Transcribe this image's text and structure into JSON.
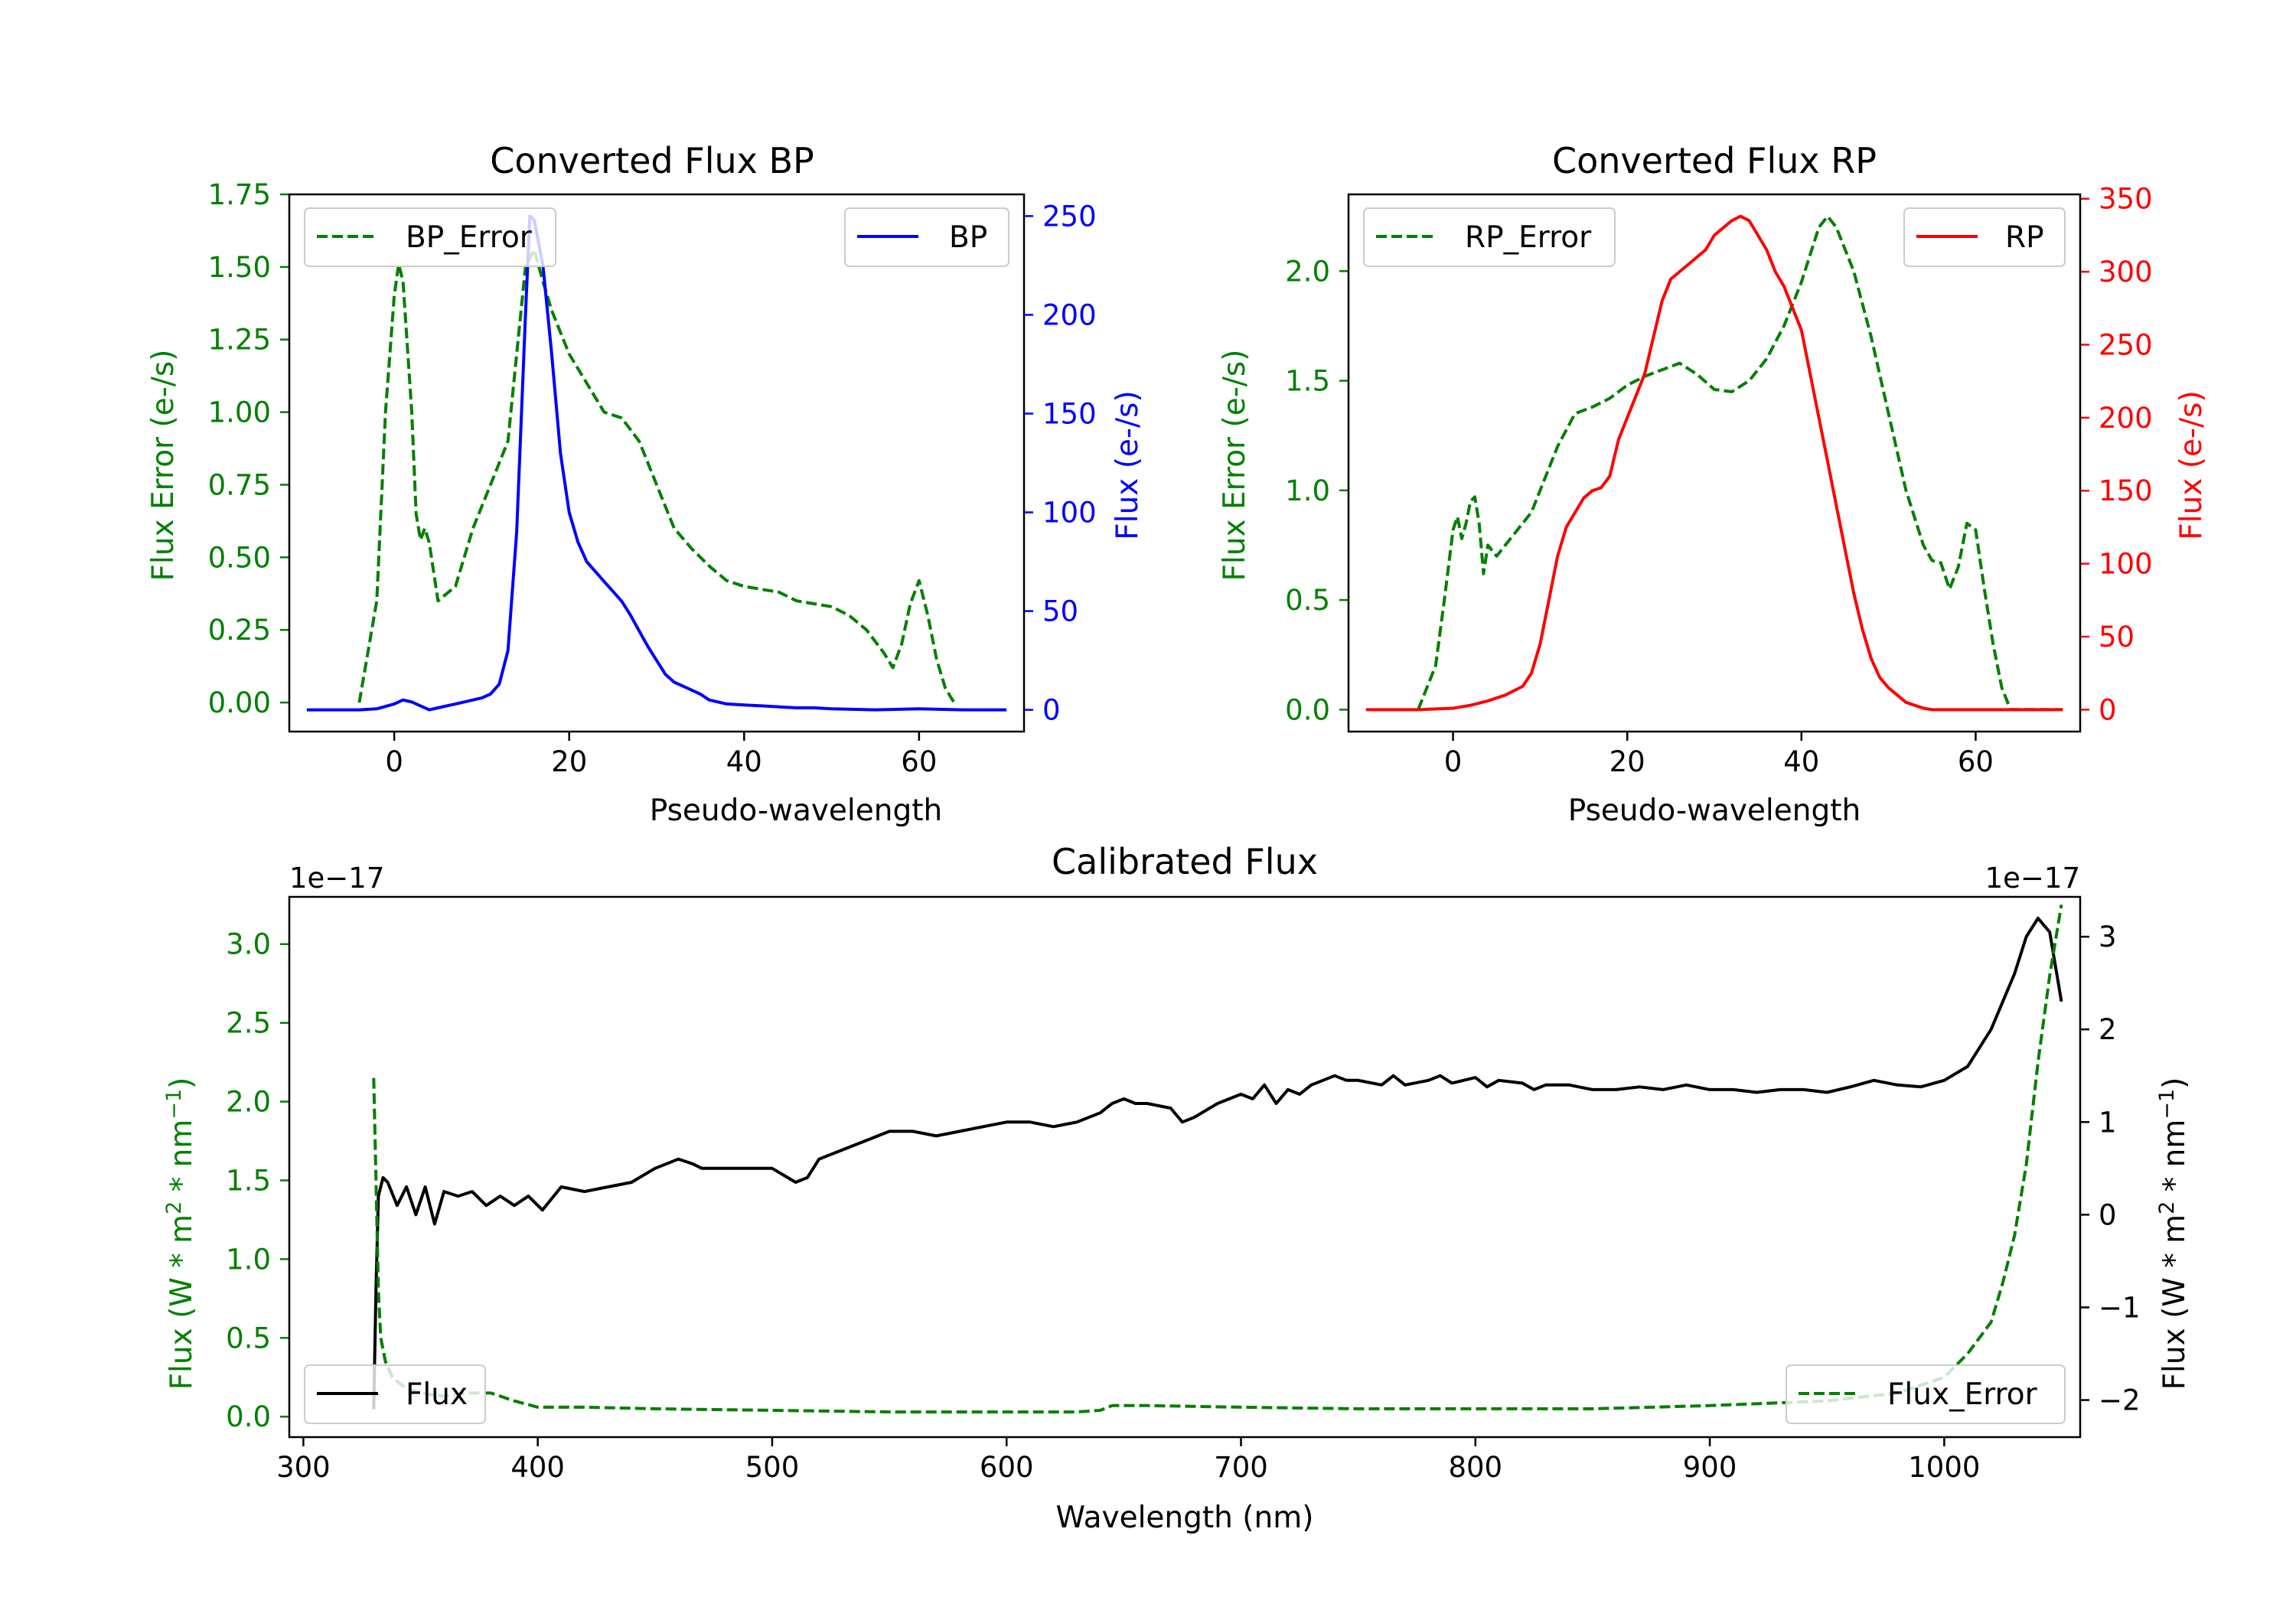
{
  "colors": {
    "green": "#008000",
    "blue": "#0000ff",
    "red": "#ff0000",
    "black": "#000000"
  },
  "chart_data": [
    {
      "id": "bp",
      "type": "line",
      "title": "Converted Flux BP",
      "xlabel": "Pseudo-wavelength",
      "xlim": [
        -12,
        72
      ],
      "xticks": [
        0,
        20,
        40,
        60
      ],
      "left_axis": {
        "label": "Flux Error (e-/s)",
        "color": "#008000",
        "ylim": [
          -0.1,
          1.75
        ],
        "ticks": [
          0.0,
          0.25,
          0.5,
          0.75,
          1.0,
          1.25,
          1.5,
          1.75
        ],
        "tick_labels": [
          "0.00",
          "0.25",
          "0.50",
          "0.75",
          "1.00",
          "1.25",
          "1.50",
          "1.75"
        ]
      },
      "right_axis": {
        "label": "Flux (e-/s)",
        "color": "#0000ff",
        "ylim": [
          -11,
          261
        ],
        "ticks": [
          0,
          50,
          100,
          150,
          200,
          250
        ],
        "tick_labels": [
          "0",
          "50",
          "100",
          "150",
          "200",
          "250"
        ]
      },
      "series": [
        {
          "name": "BP_Error",
          "axis": "left",
          "style": "dashed",
          "color": "#008000",
          "x": [
            -4,
            -2,
            -1,
            0,
            0.5,
            1,
            2,
            2.5,
            3,
            3.5,
            4,
            5,
            7,
            9,
            11,
            13,
            14,
            15,
            16,
            17,
            18,
            20,
            22,
            24,
            26,
            28,
            30,
            32,
            34,
            36,
            38,
            40,
            42,
            44,
            46,
            48,
            50,
            52,
            54,
            56,
            57,
            58,
            59,
            60,
            61,
            62,
            63,
            64
          ],
          "values": [
            0.0,
            0.35,
            1.0,
            1.4,
            1.51,
            1.45,
            1.0,
            0.65,
            0.56,
            0.6,
            0.55,
            0.35,
            0.4,
            0.6,
            0.75,
            0.9,
            1.2,
            1.5,
            1.56,
            1.45,
            1.35,
            1.2,
            1.1,
            1.0,
            0.98,
            0.9,
            0.75,
            0.6,
            0.53,
            0.47,
            0.42,
            0.4,
            0.39,
            0.38,
            0.35,
            0.34,
            0.33,
            0.3,
            0.25,
            0.17,
            0.12,
            0.2,
            0.34,
            0.42,
            0.3,
            0.15,
            0.05,
            0.0
          ]
        },
        {
          "name": "BP",
          "axis": "right",
          "style": "solid",
          "color": "#0000ff",
          "x": [
            -10,
            -6,
            -4,
            -2,
            0,
            1,
            2,
            3,
            4,
            5,
            6,
            7,
            8,
            9,
            10,
            11,
            12,
            13,
            14,
            15,
            15.5,
            16,
            17,
            18,
            19,
            20,
            21,
            22,
            23,
            24,
            25,
            26,
            27,
            28,
            29,
            30,
            31,
            32,
            33,
            34,
            35,
            36,
            38,
            40,
            42,
            44,
            46,
            48,
            50,
            55,
            60,
            65,
            70
          ],
          "values": [
            0,
            0,
            0,
            0.5,
            3,
            5,
            4,
            2,
            0,
            1,
            2,
            3,
            4,
            5,
            6,
            8,
            13,
            30,
            90,
            200,
            250,
            248,
            225,
            180,
            130,
            100,
            85,
            75,
            70,
            65,
            60,
            55,
            48,
            40,
            32,
            25,
            18,
            14,
            12,
            10,
            8,
            5,
            3,
            2.5,
            2,
            1.5,
            1,
            1,
            0.5,
            0,
            0.5,
            0,
            0
          ]
        }
      ],
      "legend": [
        {
          "label": "BP_Error",
          "position": "upper-left"
        },
        {
          "label": "BP",
          "position": "upper-right"
        }
      ]
    },
    {
      "id": "rp",
      "type": "line",
      "title": "Converted Flux RP",
      "xlabel": "Pseudo-wavelength",
      "xlim": [
        -12,
        72
      ],
      "xticks": [
        0,
        20,
        40,
        60
      ],
      "left_axis": {
        "label": "Flux Error (e-/s)",
        "color": "#008000",
        "ylim": [
          -0.1,
          2.35
        ],
        "ticks": [
          0.0,
          0.5,
          1.0,
          1.5,
          2.0
        ],
        "tick_labels": [
          "0.0",
          "0.5",
          "1.0",
          "1.5",
          "2.0"
        ]
      },
      "right_axis": {
        "label": "Flux (e-/s)",
        "color": "#ff0000",
        "ylim": [
          -15,
          353
        ],
        "ticks": [
          0,
          50,
          100,
          150,
          200,
          250,
          300,
          350
        ],
        "tick_labels": [
          "0",
          "50",
          "100",
          "150",
          "200",
          "250",
          "300",
          "350"
        ]
      },
      "series": [
        {
          "name": "RP_Error",
          "axis": "left",
          "style": "dashed",
          "color": "#008000",
          "x": [
            -4,
            -2,
            -1,
            0,
            0.5,
            1,
            1.5,
            2,
            2.5,
            3,
            3.5,
            4,
            5,
            7,
            9,
            10,
            12,
            14,
            16,
            18,
            20,
            22,
            24,
            26,
            28,
            30,
            32,
            34,
            36,
            38,
            40,
            42,
            43,
            44,
            46,
            48,
            50,
            52,
            54,
            55,
            56,
            57,
            58,
            59,
            60,
            61,
            62,
            63,
            64,
            66,
            68,
            70
          ],
          "values": [
            0.0,
            0.2,
            0.5,
            0.82,
            0.88,
            0.78,
            0.85,
            0.95,
            0.97,
            0.85,
            0.62,
            0.75,
            0.7,
            0.8,
            0.9,
            1.0,
            1.2,
            1.35,
            1.38,
            1.42,
            1.48,
            1.52,
            1.55,
            1.58,
            1.53,
            1.46,
            1.45,
            1.5,
            1.6,
            1.75,
            1.95,
            2.2,
            2.25,
            2.2,
            2.0,
            1.7,
            1.35,
            1.0,
            0.75,
            0.68,
            0.67,
            0.55,
            0.65,
            0.85,
            0.82,
            0.55,
            0.3,
            0.1,
            0.0,
            0.0,
            0.0,
            0.0
          ]
        },
        {
          "name": "RP",
          "axis": "right",
          "style": "solid",
          "color": "#ff0000",
          "x": [
            -10,
            -4,
            0,
            2,
            4,
            6,
            8,
            9,
            10,
            11,
            12,
            13,
            14,
            15,
            16,
            17,
            18,
            19,
            20,
            21,
            22,
            23,
            24,
            25,
            26,
            27,
            28,
            29,
            30,
            31,
            32,
            33,
            34,
            35,
            36,
            37,
            38,
            39,
            40,
            41,
            42,
            43,
            44,
            45,
            46,
            47,
            48,
            49,
            50,
            51,
            52,
            53,
            54,
            55,
            56,
            58,
            60,
            65,
            70
          ],
          "values": [
            0,
            0,
            1,
            3,
            6,
            10,
            16,
            25,
            45,
            75,
            105,
            125,
            135,
            145,
            150,
            152,
            160,
            185,
            200,
            215,
            230,
            255,
            280,
            295,
            300,
            305,
            310,
            315,
            325,
            330,
            335,
            338,
            335,
            325,
            315,
            300,
            290,
            275,
            260,
            230,
            200,
            170,
            140,
            110,
            80,
            55,
            35,
            22,
            15,
            10,
            5,
            3,
            1,
            0,
            0,
            0,
            0,
            0,
            0
          ]
        }
      ],
      "legend": [
        {
          "label": "RP_Error",
          "position": "upper-left"
        },
        {
          "label": "RP",
          "position": "upper-right"
        }
      ]
    },
    {
      "id": "calibrated",
      "type": "line",
      "title": "Calibrated Flux",
      "xlabel": "Wavelength (nm)",
      "xlim": [
        294,
        1058
      ],
      "xticks": [
        300,
        400,
        500,
        600,
        700,
        800,
        900,
        1000
      ],
      "left_axis": {
        "label": "Flux (W * m^2 * nm^-1)",
        "color": "#008000",
        "offset_text": "1e−17",
        "ylim": [
          -0.13,
          3.3
        ],
        "ticks": [
          0.0,
          0.5,
          1.0,
          1.5,
          2.0,
          2.5,
          3.0
        ],
        "tick_labels": [
          "0.0",
          "0.5",
          "1.0",
          "1.5",
          "2.0",
          "2.5",
          "3.0"
        ]
      },
      "right_axis": {
        "label": "Flux (W * m^2 * nm^-1)",
        "color": "#000000",
        "offset_text": "1e−17",
        "ylim": [
          -2.4,
          3.43
        ],
        "ticks": [
          -2,
          -1,
          0,
          1,
          2,
          3
        ],
        "tick_labels": [
          "−2",
          "−1",
          "0",
          "1",
          "2",
          "3"
        ]
      },
      "series": [
        {
          "name": "Flux",
          "axis": "right",
          "style": "solid",
          "color": "#000000",
          "x": [
            330,
            331,
            332,
            334,
            336,
            340,
            344,
            348,
            352,
            356,
            360,
            366,
            372,
            378,
            384,
            390,
            396,
            402,
            410,
            420,
            430,
            440,
            450,
            460,
            466,
            470,
            480,
            490,
            500,
            510,
            515,
            520,
            530,
            540,
            550,
            560,
            570,
            580,
            590,
            600,
            610,
            620,
            630,
            640,
            645,
            650,
            655,
            660,
            670,
            675,
            680,
            690,
            700,
            705,
            710,
            715,
            720,
            725,
            730,
            740,
            745,
            750,
            760,
            765,
            770,
            780,
            785,
            790,
            800,
            805,
            810,
            820,
            825,
            830,
            840,
            850,
            860,
            870,
            880,
            890,
            900,
            910,
            920,
            930,
            940,
            950,
            960,
            970,
            980,
            990,
            1000,
            1010,
            1020,
            1030,
            1035,
            1040,
            1045,
            1050
          ],
          "values": [
            -2.1,
            -0.8,
            0.2,
            0.4,
            0.35,
            0.1,
            0.3,
            0.0,
            0.3,
            -0.1,
            0.25,
            0.2,
            0.25,
            0.1,
            0.2,
            0.1,
            0.2,
            0.05,
            0.3,
            0.25,
            0.3,
            0.35,
            0.5,
            0.6,
            0.55,
            0.5,
            0.5,
            0.5,
            0.5,
            0.35,
            0.4,
            0.6,
            0.7,
            0.8,
            0.9,
            0.9,
            0.85,
            0.9,
            0.95,
            1.0,
            1.0,
            0.95,
            1.0,
            1.1,
            1.2,
            1.25,
            1.2,
            1.2,
            1.15,
            1.0,
            1.05,
            1.2,
            1.3,
            1.25,
            1.4,
            1.2,
            1.35,
            1.3,
            1.4,
            1.5,
            1.45,
            1.45,
            1.4,
            1.5,
            1.4,
            1.45,
            1.5,
            1.42,
            1.48,
            1.38,
            1.45,
            1.42,
            1.35,
            1.4,
            1.4,
            1.35,
            1.35,
            1.38,
            1.35,
            1.4,
            1.35,
            1.35,
            1.32,
            1.35,
            1.35,
            1.32,
            1.38,
            1.45,
            1.4,
            1.38,
            1.45,
            1.6,
            2.0,
            2.6,
            3.0,
            3.2,
            3.05,
            2.3
          ]
        },
        {
          "name": "Flux_Error",
          "axis": "left",
          "style": "dashed",
          "color": "#008000",
          "x": [
            330,
            331,
            332,
            333,
            335,
            338,
            342,
            346,
            350,
            360,
            370,
            380,
            390,
            400,
            420,
            450,
            500,
            550,
            600,
            630,
            640,
            645,
            660,
            700,
            750,
            800,
            850,
            900,
            950,
            980,
            1000,
            1010,
            1020,
            1025,
            1030,
            1035,
            1040,
            1045,
            1050
          ],
          "values": [
            2.15,
            1.5,
            0.8,
            0.5,
            0.35,
            0.25,
            0.2,
            0.17,
            0.15,
            0.13,
            0.15,
            0.15,
            0.1,
            0.06,
            0.06,
            0.05,
            0.04,
            0.03,
            0.03,
            0.03,
            0.04,
            0.07,
            0.07,
            0.06,
            0.05,
            0.05,
            0.05,
            0.07,
            0.1,
            0.15,
            0.25,
            0.4,
            0.6,
            0.85,
            1.15,
            1.6,
            2.25,
            2.8,
            3.25
          ]
        }
      ],
      "legend": [
        {
          "label": "Flux",
          "position": "lower-left"
        },
        {
          "label": "Flux_Error",
          "position": "lower-right"
        }
      ]
    }
  ]
}
